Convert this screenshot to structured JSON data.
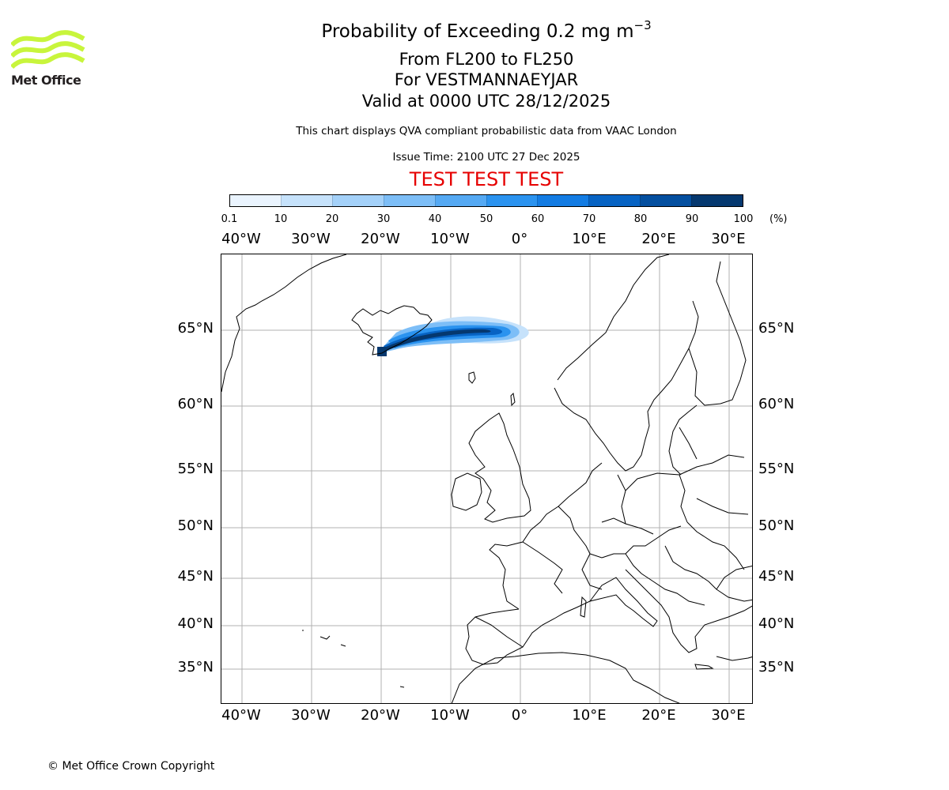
{
  "title": {
    "line1_prefix": "Probability of Exceeding 0.2 mg m",
    "line1_exp": "−3",
    "line2": "From FL200 to FL250",
    "line3": "For VESTMANNAEYJAR",
    "line4": "Valid at 0000 UTC 28/12/2025"
  },
  "disclaimer": "This chart displays QVA compliant probabilistic data from VAAC London",
  "issue_time": "Issue Time: 2100 UTC 27 Dec 2025",
  "test_banner": "TEST TEST TEST",
  "test_color": "#e60000",
  "logo_text": "Met Office",
  "logo_color": "#c8f53c",
  "colorbar": {
    "ticks": [
      "0.1",
      "10",
      "20",
      "30",
      "40",
      "50",
      "60",
      "70",
      "80",
      "90",
      "100"
    ],
    "unit": "(%)",
    "colors": [
      "#eaf4fe",
      "#c6e2fb",
      "#a4d1f9",
      "#7dbef7",
      "#55a9f3",
      "#2b93ef",
      "#137ce3",
      "#0763c3",
      "#044f9f",
      "#05386f"
    ]
  },
  "axes": {
    "lon_labels": [
      "40°W",
      "30°W",
      "20°W",
      "10°W",
      "0°",
      "10°E",
      "20°E",
      "30°E"
    ],
    "lat_labels": [
      "65°N",
      "60°N",
      "55°N",
      "50°N",
      "45°N",
      "40°N",
      "35°N"
    ]
  },
  "plume": {
    "source": "VESTMANNAEYJAR",
    "description": "ash probability band extending east from south Iceland to about 5°W near 65°N"
  },
  "copyright": "© Met Office Crown Copyright"
}
